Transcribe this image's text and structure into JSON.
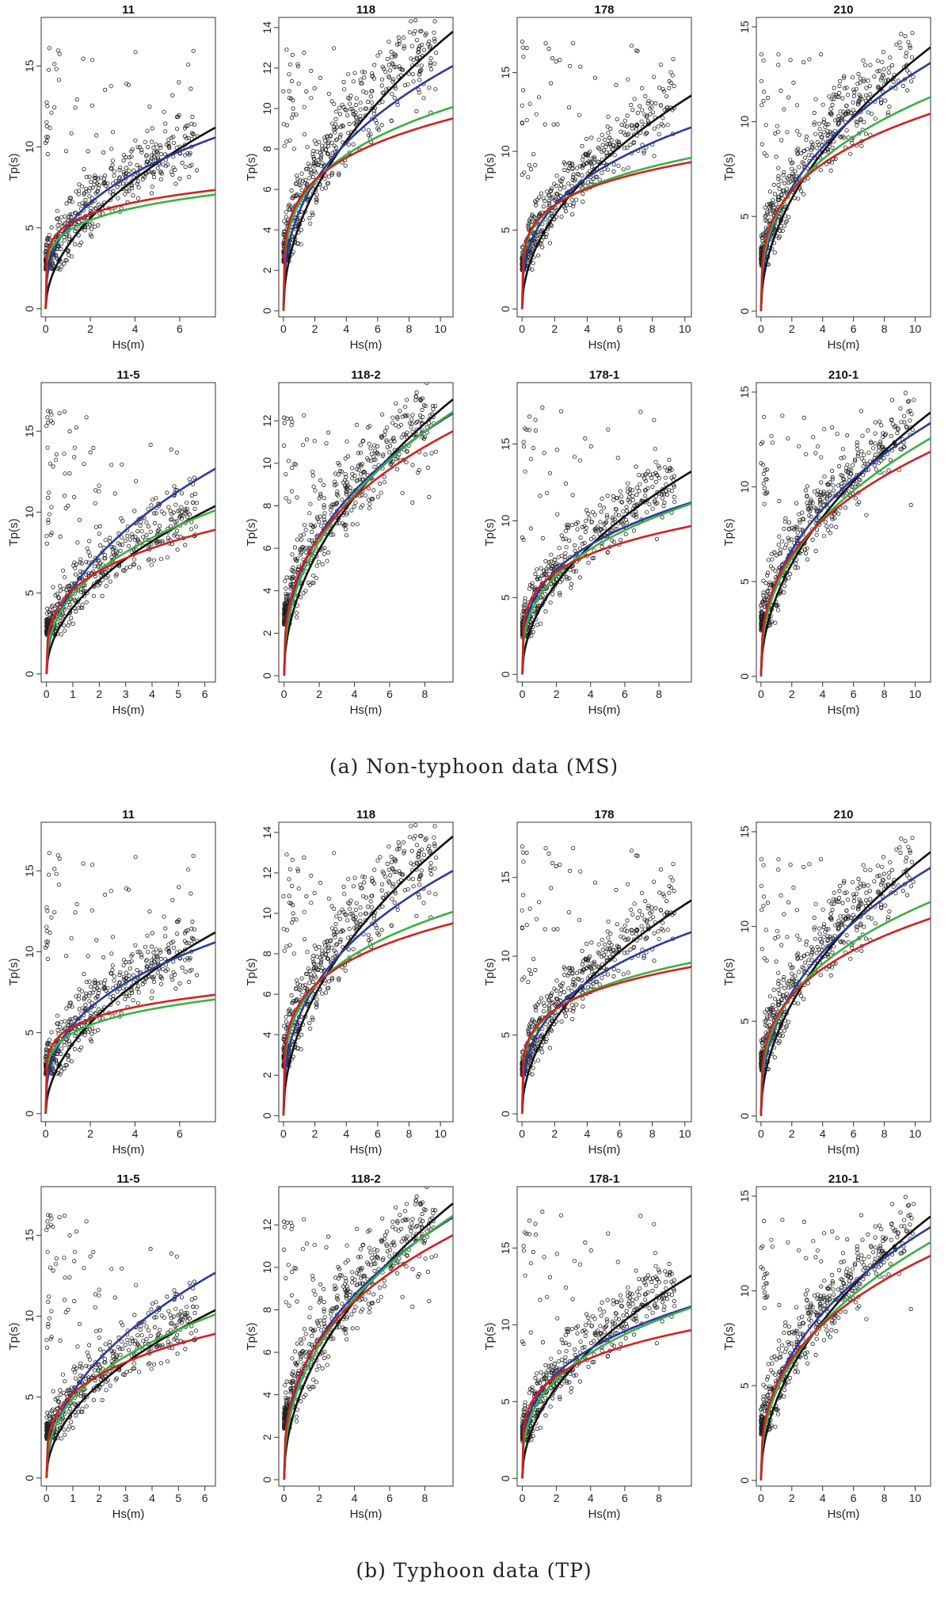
{
  "figure": {
    "captions": [
      "(a) Non-typhoon data (MS)",
      "(b) Typhoon data (TP)"
    ]
  },
  "colors": {
    "black": "#111111",
    "blue": "#2b3aa0",
    "green": "#3cb043",
    "red": "#d42020",
    "points": "#222222"
  },
  "chart_data": [
    {
      "group": "MS",
      "type": "scatter",
      "title": "11",
      "xlabel": "Hs(m)",
      "ylabel": "Tp(s)",
      "xlim": [
        -0.2,
        7.6
      ],
      "ylim": [
        -0.5,
        18
      ],
      "xticks": [
        0,
        2,
        4,
        6
      ],
      "yticks": [
        0,
        5,
        10,
        15
      ],
      "series": [
        {
          "name": "black",
          "color": "#111111",
          "a": 3.9,
          "b": 0.52
        },
        {
          "name": "blue",
          "color": "#2b3aa0",
          "a": 5.1,
          "b": 0.36
        },
        {
          "name": "green",
          "color": "#3cb043",
          "a": 4.8,
          "b": 0.19
        },
        {
          "name": "red",
          "color": "#d42020",
          "a": 5.2,
          "b": 0.17
        }
      ]
    },
    {
      "group": "MS",
      "type": "scatter",
      "title": "118",
      "xlabel": "Hs(m)",
      "ylabel": "Tp(s)",
      "xlim": [
        -0.3,
        10.8
      ],
      "ylim": [
        -0.3,
        14.5
      ],
      "xticks": [
        0,
        2,
        4,
        6,
        8,
        10
      ],
      "yticks": [
        0,
        2,
        4,
        6,
        8,
        10,
        12,
        14
      ],
      "series": [
        {
          "name": "black",
          "color": "#111111",
          "a": 4.2,
          "b": 0.5
        },
        {
          "name": "blue",
          "color": "#2b3aa0",
          "a": 4.9,
          "b": 0.38
        },
        {
          "name": "green",
          "color": "#3cb043",
          "a": 5.3,
          "b": 0.27
        },
        {
          "name": "red",
          "color": "#d42020",
          "a": 5.5,
          "b": 0.23
        }
      ]
    },
    {
      "group": "MS",
      "type": "scatter",
      "title": "178",
      "xlabel": "Hs(m)",
      "ylabel": "Tp(s)",
      "xlim": [
        -0.3,
        10.4
      ],
      "ylim": [
        -0.5,
        18.5
      ],
      "xticks": [
        0,
        2,
        4,
        6,
        8,
        10
      ],
      "yticks": [
        0,
        5,
        10,
        15
      ],
      "series": [
        {
          "name": "black",
          "color": "#111111",
          "a": 4.2,
          "b": 0.5
        },
        {
          "name": "blue",
          "color": "#2b3aa0",
          "a": 5.2,
          "b": 0.34
        },
        {
          "name": "green",
          "color": "#3cb043",
          "a": 5.6,
          "b": 0.23
        },
        {
          "name": "red",
          "color": "#d42020",
          "a": 5.7,
          "b": 0.21
        }
      ]
    },
    {
      "group": "MS",
      "type": "scatter",
      "title": "210",
      "xlabel": "Hs(m)",
      "ylabel": "Tp(s)",
      "xlim": [
        -0.3,
        11
      ],
      "ylim": [
        -0.3,
        15.5
      ],
      "xticks": [
        0,
        2,
        4,
        6,
        8,
        10
      ],
      "yticks": [
        0,
        5,
        10,
        15
      ],
      "series": [
        {
          "name": "black",
          "color": "#111111",
          "a": 4.2,
          "b": 0.5
        },
        {
          "name": "blue",
          "color": "#2b3aa0",
          "a": 4.9,
          "b": 0.41
        },
        {
          "name": "green",
          "color": "#3cb043",
          "a": 5.0,
          "b": 0.34
        },
        {
          "name": "red",
          "color": "#d42020",
          "a": 5.2,
          "b": 0.29
        }
      ]
    },
    {
      "group": "MS",
      "type": "scatter",
      "title": "11-5",
      "xlabel": "Hs(m)",
      "ylabel": "Tp(s)",
      "xlim": [
        -0.2,
        6.4
      ],
      "ylim": [
        -0.5,
        18
      ],
      "xticks": [
        0,
        1,
        2,
        3,
        4,
        5,
        6
      ],
      "yticks": [
        0,
        5,
        10,
        15
      ],
      "series": [
        {
          "name": "black",
          "color": "#111111",
          "a": 4.1,
          "b": 0.5
        },
        {
          "name": "blue",
          "color": "#2b3aa0",
          "a": 5.3,
          "b": 0.47
        },
        {
          "name": "green",
          "color": "#3cb043",
          "a": 4.9,
          "b": 0.39
        },
        {
          "name": "red",
          "color": "#d42020",
          "a": 5.2,
          "b": 0.29
        }
      ]
    },
    {
      "group": "MS",
      "type": "scatter",
      "title": "118-2",
      "xlabel": "Hs(m)",
      "ylabel": "Tp(s)",
      "xlim": [
        -0.3,
        9.6
      ],
      "ylim": [
        -0.3,
        13.8
      ],
      "xticks": [
        0,
        2,
        4,
        6,
        8
      ],
      "yticks": [
        0,
        2,
        4,
        6,
        8,
        10,
        12
      ],
      "series": [
        {
          "name": "black",
          "color": "#111111",
          "a": 4.2,
          "b": 0.5
        },
        {
          "name": "blue",
          "color": "#2b3aa0",
          "a": 5.0,
          "b": 0.4
        },
        {
          "name": "green",
          "color": "#3cb043",
          "a": 4.7,
          "b": 0.43
        },
        {
          "name": "red",
          "color": "#d42020",
          "a": 5.1,
          "b": 0.36
        }
      ]
    },
    {
      "group": "MS",
      "type": "scatter",
      "title": "178-1",
      "xlabel": "Hs(m)",
      "ylabel": "Tp(s)",
      "xlim": [
        -0.3,
        9.9
      ],
      "ylim": [
        -0.5,
        19
      ],
      "xticks": [
        0,
        2,
        4,
        6,
        8
      ],
      "yticks": [
        0,
        5,
        10,
        15
      ],
      "series": [
        {
          "name": "black",
          "color": "#111111",
          "a": 4.2,
          "b": 0.5
        },
        {
          "name": "blue",
          "color": "#2b3aa0",
          "a": 5.5,
          "b": 0.31
        },
        {
          "name": "green",
          "color": "#3cb043",
          "a": 5.1,
          "b": 0.34
        },
        {
          "name": "red",
          "color": "#d42020",
          "a": 5.7,
          "b": 0.23
        }
      ]
    },
    {
      "group": "MS",
      "type": "scatter",
      "title": "210-1",
      "xlabel": "Hs(m)",
      "ylabel": "Tp(s)",
      "xlim": [
        -0.3,
        11
      ],
      "ylim": [
        -0.3,
        15.5
      ],
      "xticks": [
        0,
        2,
        4,
        6,
        8,
        10
      ],
      "yticks": [
        0,
        5,
        10,
        15
      ],
      "series": [
        {
          "name": "black",
          "color": "#111111",
          "a": 4.2,
          "b": 0.5
        },
        {
          "name": "blue",
          "color": "#2b3aa0",
          "a": 5.0,
          "b": 0.41
        },
        {
          "name": "green",
          "color": "#3cb043",
          "a": 4.7,
          "b": 0.41
        },
        {
          "name": "red",
          "color": "#d42020",
          "a": 5.0,
          "b": 0.36
        }
      ]
    },
    {
      "group": "TP",
      "type": "scatter",
      "title": "11",
      "xlabel": "Hs(m)",
      "ylabel": "Tp(s)",
      "xlim": [
        -0.2,
        7.6
      ],
      "ylim": [
        -0.5,
        18
      ],
      "xticks": [
        0,
        2,
        4,
        6
      ],
      "yticks": [
        0,
        5,
        10,
        15
      ],
      "series": [
        {
          "name": "black",
          "color": "#111111",
          "a": 3.9,
          "b": 0.52
        },
        {
          "name": "blue",
          "color": "#2b3aa0",
          "a": 5.1,
          "b": 0.36
        },
        {
          "name": "green",
          "color": "#3cb043",
          "a": 4.8,
          "b": 0.19
        },
        {
          "name": "red",
          "color": "#d42020",
          "a": 5.2,
          "b": 0.17
        }
      ]
    },
    {
      "group": "TP",
      "type": "scatter",
      "title": "118",
      "xlabel": "Hs(m)",
      "ylabel": "Tp(s)",
      "xlim": [
        -0.3,
        10.8
      ],
      "ylim": [
        -0.3,
        14.5
      ],
      "xticks": [
        0,
        2,
        4,
        6,
        8,
        10
      ],
      "yticks": [
        0,
        2,
        4,
        6,
        8,
        10,
        12,
        14
      ],
      "series": [
        {
          "name": "black",
          "color": "#111111",
          "a": 4.2,
          "b": 0.5
        },
        {
          "name": "blue",
          "color": "#2b3aa0",
          "a": 4.9,
          "b": 0.38
        },
        {
          "name": "green",
          "color": "#3cb043",
          "a": 5.3,
          "b": 0.27
        },
        {
          "name": "red",
          "color": "#d42020",
          "a": 5.5,
          "b": 0.23
        }
      ]
    },
    {
      "group": "TP",
      "type": "scatter",
      "title": "178",
      "xlabel": "Hs(m)",
      "ylabel": "Tp(s)",
      "xlim": [
        -0.3,
        10.4
      ],
      "ylim": [
        -0.5,
        18.5
      ],
      "xticks": [
        0,
        2,
        4,
        6,
        8,
        10
      ],
      "yticks": [
        0,
        5,
        10,
        15
      ],
      "series": [
        {
          "name": "black",
          "color": "#111111",
          "a": 4.2,
          "b": 0.5
        },
        {
          "name": "blue",
          "color": "#2b3aa0",
          "a": 5.2,
          "b": 0.34
        },
        {
          "name": "green",
          "color": "#3cb043",
          "a": 5.6,
          "b": 0.23
        },
        {
          "name": "red",
          "color": "#d42020",
          "a": 5.7,
          "b": 0.21
        }
      ]
    },
    {
      "group": "TP",
      "type": "scatter",
      "title": "210",
      "xlabel": "Hs(m)",
      "ylabel": "Tp(s)",
      "xlim": [
        -0.3,
        11
      ],
      "ylim": [
        -0.3,
        15.5
      ],
      "xticks": [
        0,
        2,
        4,
        6,
        8,
        10
      ],
      "yticks": [
        0,
        5,
        10,
        15
      ],
      "series": [
        {
          "name": "black",
          "color": "#111111",
          "a": 4.2,
          "b": 0.5
        },
        {
          "name": "blue",
          "color": "#2b3aa0",
          "a": 4.9,
          "b": 0.41
        },
        {
          "name": "green",
          "color": "#3cb043",
          "a": 5.0,
          "b": 0.34
        },
        {
          "name": "red",
          "color": "#d42020",
          "a": 5.2,
          "b": 0.29
        }
      ]
    },
    {
      "group": "TP",
      "type": "scatter",
      "title": "11-5",
      "xlabel": "Hs(m)",
      "ylabel": "Tp(s)",
      "xlim": [
        -0.2,
        6.4
      ],
      "ylim": [
        -0.5,
        18
      ],
      "xticks": [
        0,
        1,
        2,
        3,
        4,
        5,
        6
      ],
      "yticks": [
        0,
        5,
        10,
        15
      ],
      "series": [
        {
          "name": "black",
          "color": "#111111",
          "a": 4.1,
          "b": 0.5
        },
        {
          "name": "blue",
          "color": "#2b3aa0",
          "a": 5.3,
          "b": 0.47
        },
        {
          "name": "green",
          "color": "#3cb043",
          "a": 4.9,
          "b": 0.39
        },
        {
          "name": "red",
          "color": "#d42020",
          "a": 5.2,
          "b": 0.29
        }
      ]
    },
    {
      "group": "TP",
      "type": "scatter",
      "title": "118-2",
      "xlabel": "Hs(m)",
      "ylabel": "Tp(s)",
      "xlim": [
        -0.3,
        9.6
      ],
      "ylim": [
        -0.3,
        13.8
      ],
      "xticks": [
        0,
        2,
        4,
        6,
        8
      ],
      "yticks": [
        0,
        2,
        4,
        6,
        8,
        10,
        12
      ],
      "series": [
        {
          "name": "black",
          "color": "#111111",
          "a": 4.2,
          "b": 0.5
        },
        {
          "name": "blue",
          "color": "#2b3aa0",
          "a": 5.0,
          "b": 0.4
        },
        {
          "name": "green",
          "color": "#3cb043",
          "a": 4.7,
          "b": 0.43
        },
        {
          "name": "red",
          "color": "#d42020",
          "a": 5.1,
          "b": 0.36
        }
      ]
    },
    {
      "group": "TP",
      "type": "scatter",
      "title": "178-1",
      "xlabel": "Hs(m)",
      "ylabel": "Tp(s)",
      "xlim": [
        -0.3,
        9.9
      ],
      "ylim": [
        -0.5,
        19
      ],
      "xticks": [
        0,
        2,
        4,
        6,
        8
      ],
      "yticks": [
        0,
        5,
        10,
        15
      ],
      "series": [
        {
          "name": "black",
          "color": "#111111",
          "a": 4.2,
          "b": 0.5
        },
        {
          "name": "blue",
          "color": "#2b3aa0",
          "a": 5.5,
          "b": 0.31
        },
        {
          "name": "green",
          "color": "#3cb043",
          "a": 5.1,
          "b": 0.34
        },
        {
          "name": "red",
          "color": "#d42020",
          "a": 5.7,
          "b": 0.23
        }
      ]
    },
    {
      "group": "TP",
      "type": "scatter",
      "title": "210-1",
      "xlabel": "Hs(m)",
      "ylabel": "Tp(s)",
      "xlim": [
        -0.3,
        11
      ],
      "ylim": [
        -0.3,
        15.5
      ],
      "xticks": [
        0,
        2,
        4,
        6,
        8,
        10
      ],
      "yticks": [
        0,
        5,
        10,
        15
      ],
      "series": [
        {
          "name": "black",
          "color": "#111111",
          "a": 4.2,
          "b": 0.5
        },
        {
          "name": "blue",
          "color": "#2b3aa0",
          "a": 5.0,
          "b": 0.41
        },
        {
          "name": "green",
          "color": "#3cb043",
          "a": 4.7,
          "b": 0.41
        },
        {
          "name": "red",
          "color": "#d42020",
          "a": 5.0,
          "b": 0.36
        }
      ]
    }
  ]
}
